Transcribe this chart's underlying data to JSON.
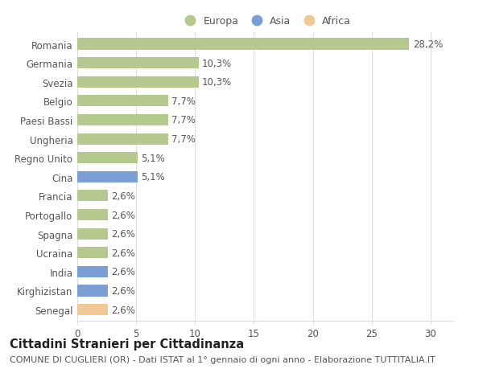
{
  "categories": [
    "Senegal",
    "Kirghizistan",
    "India",
    "Ucraina",
    "Spagna",
    "Portogallo",
    "Francia",
    "Cina",
    "Regno Unito",
    "Ungheria",
    "Paesi Bassi",
    "Belgio",
    "Svezia",
    "Germania",
    "Romania"
  ],
  "values": [
    2.6,
    2.6,
    2.6,
    2.6,
    2.6,
    2.6,
    2.6,
    5.1,
    5.1,
    7.7,
    7.7,
    7.7,
    10.3,
    10.3,
    28.2
  ],
  "labels": [
    "2,6%",
    "2,6%",
    "2,6%",
    "2,6%",
    "2,6%",
    "2,6%",
    "2,6%",
    "5,1%",
    "5,1%",
    "7,7%",
    "7,7%",
    "7,7%",
    "10,3%",
    "10,3%",
    "28,2%"
  ],
  "colors": [
    "#f0c896",
    "#7b9fd4",
    "#7b9fd4",
    "#b5c98e",
    "#b5c98e",
    "#b5c98e",
    "#b5c98e",
    "#7b9fd4",
    "#b5c98e",
    "#b5c98e",
    "#b5c98e",
    "#b5c98e",
    "#b5c98e",
    "#b5c98e",
    "#b5c98e"
  ],
  "legend_labels": [
    "Europa",
    "Asia",
    "Africa"
  ],
  "legend_colors": [
    "#b5c98e",
    "#7b9fd4",
    "#f0c896"
  ],
  "title": "Cittadini Stranieri per Cittadinanza",
  "subtitle": "COMUNE DI CUGLIERI (OR) - Dati ISTAT al 1° gennaio di ogni anno - Elaborazione TUTTITALIA.IT",
  "xlim": [
    0,
    32
  ],
  "xticks": [
    0,
    5,
    10,
    15,
    20,
    25,
    30
  ],
  "bar_height": 0.6,
  "background_color": "#ffffff",
  "grid_color": "#dddddd",
  "text_color": "#555555",
  "title_fontsize": 10.5,
  "subtitle_fontsize": 8,
  "tick_fontsize": 8.5,
  "label_fontsize": 8.5
}
